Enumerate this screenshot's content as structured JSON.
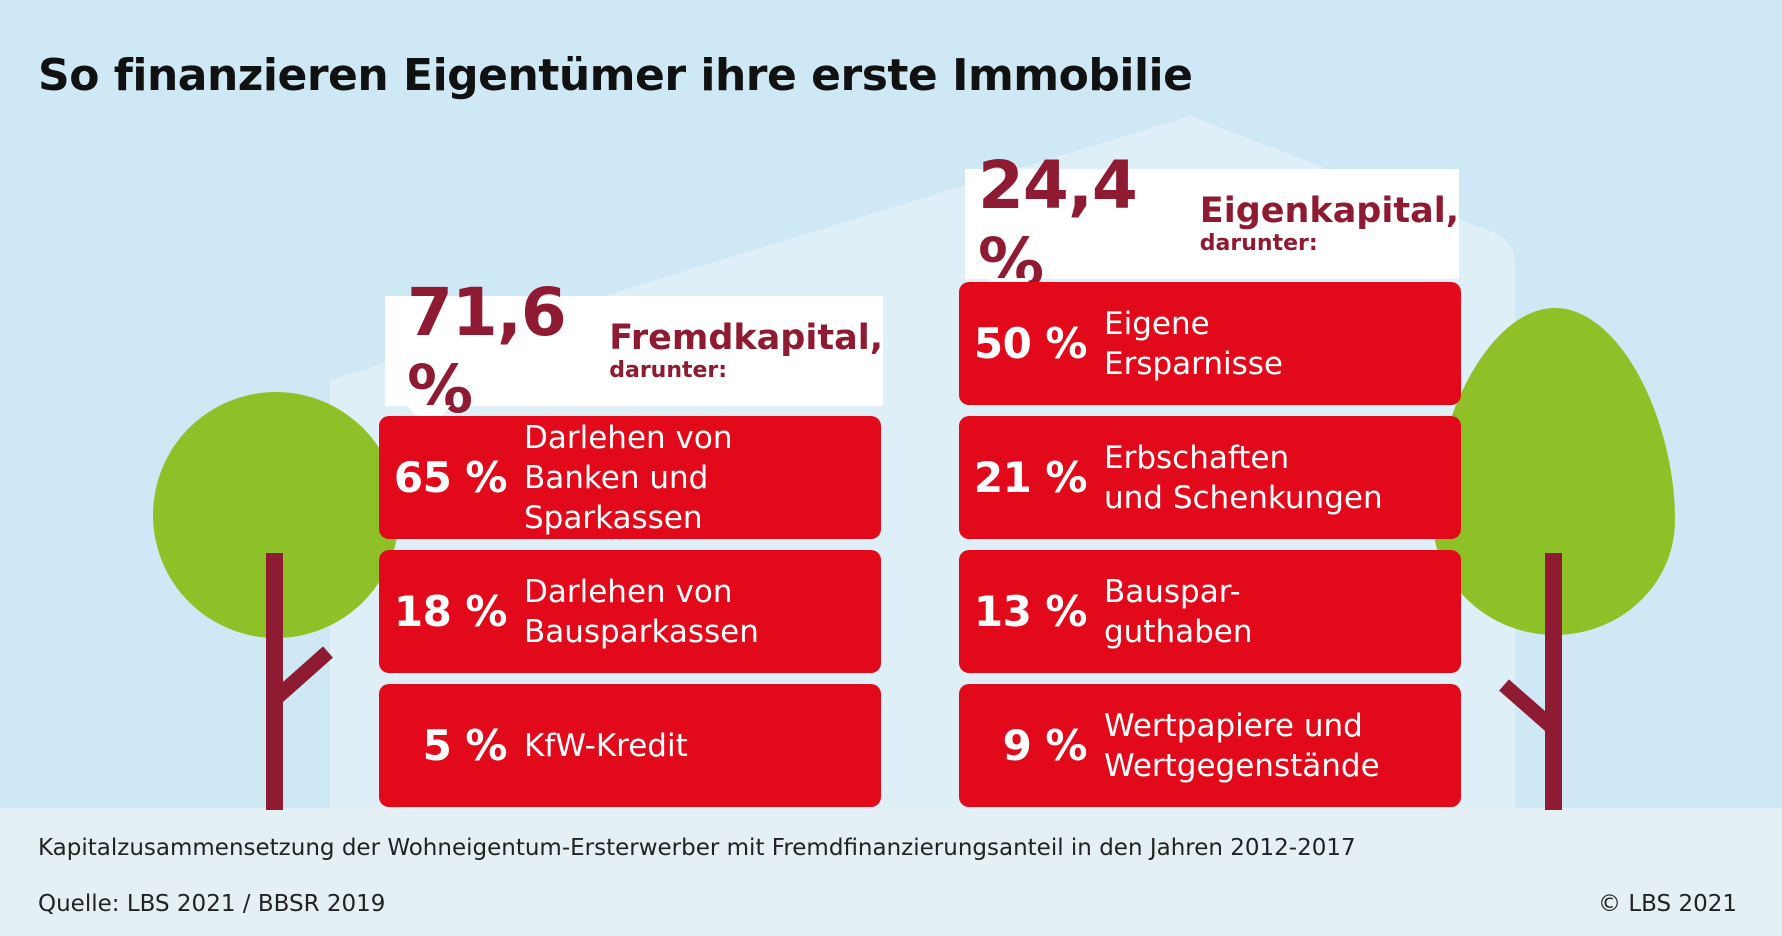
{
  "title": "So finanzieren Eigentümer ihre erste Immobilie",
  "colors": {
    "sky": "#cfe8f5",
    "house": "#dfeff8",
    "ground": "#e5f0f4",
    "box_red": "#e20a1a",
    "dark_red": "#8e1b32",
    "tree_green": "#8ec127"
  },
  "chart_data": {
    "type": "table",
    "groups": [
      {
        "total": "71,6 %",
        "label": "Fremdkapital,",
        "sublabel": "darunter:",
        "items": [
          {
            "value": "65 %",
            "line1": "Darlehen von",
            "line2": "Banken und Sparkassen"
          },
          {
            "value": "18 %",
            "line1": "Darlehen von",
            "line2": "Bausparkassen"
          },
          {
            "value": "5 %",
            "line1": "KfW-Kredit",
            "line2": ""
          }
        ]
      },
      {
        "total": "24,4 %",
        "label": "Eigenkapital,",
        "sublabel": "darunter:",
        "items": [
          {
            "value": "50 %",
            "line1": "Eigene",
            "line2": "Ersparnisse"
          },
          {
            "value": "21 %",
            "line1": "Erbschaften",
            "line2": "und Schenkungen"
          },
          {
            "value": "13 %",
            "line1": "Bauspar-",
            "line2": "guthaben"
          },
          {
            "value": "9 %",
            "line1": "Wertpapiere und",
            "line2": "Wertgegenstände"
          }
        ]
      }
    ]
  },
  "footer": {
    "note": "Kapitalzusammensetzung der Wohneigentum-Ersterwerber mit Fremdfinanzierungsanteil in den Jahren 2012-2017",
    "source": "Quelle: LBS 2021 / BBSR 2019",
    "copyright": "© LBS 2021"
  }
}
